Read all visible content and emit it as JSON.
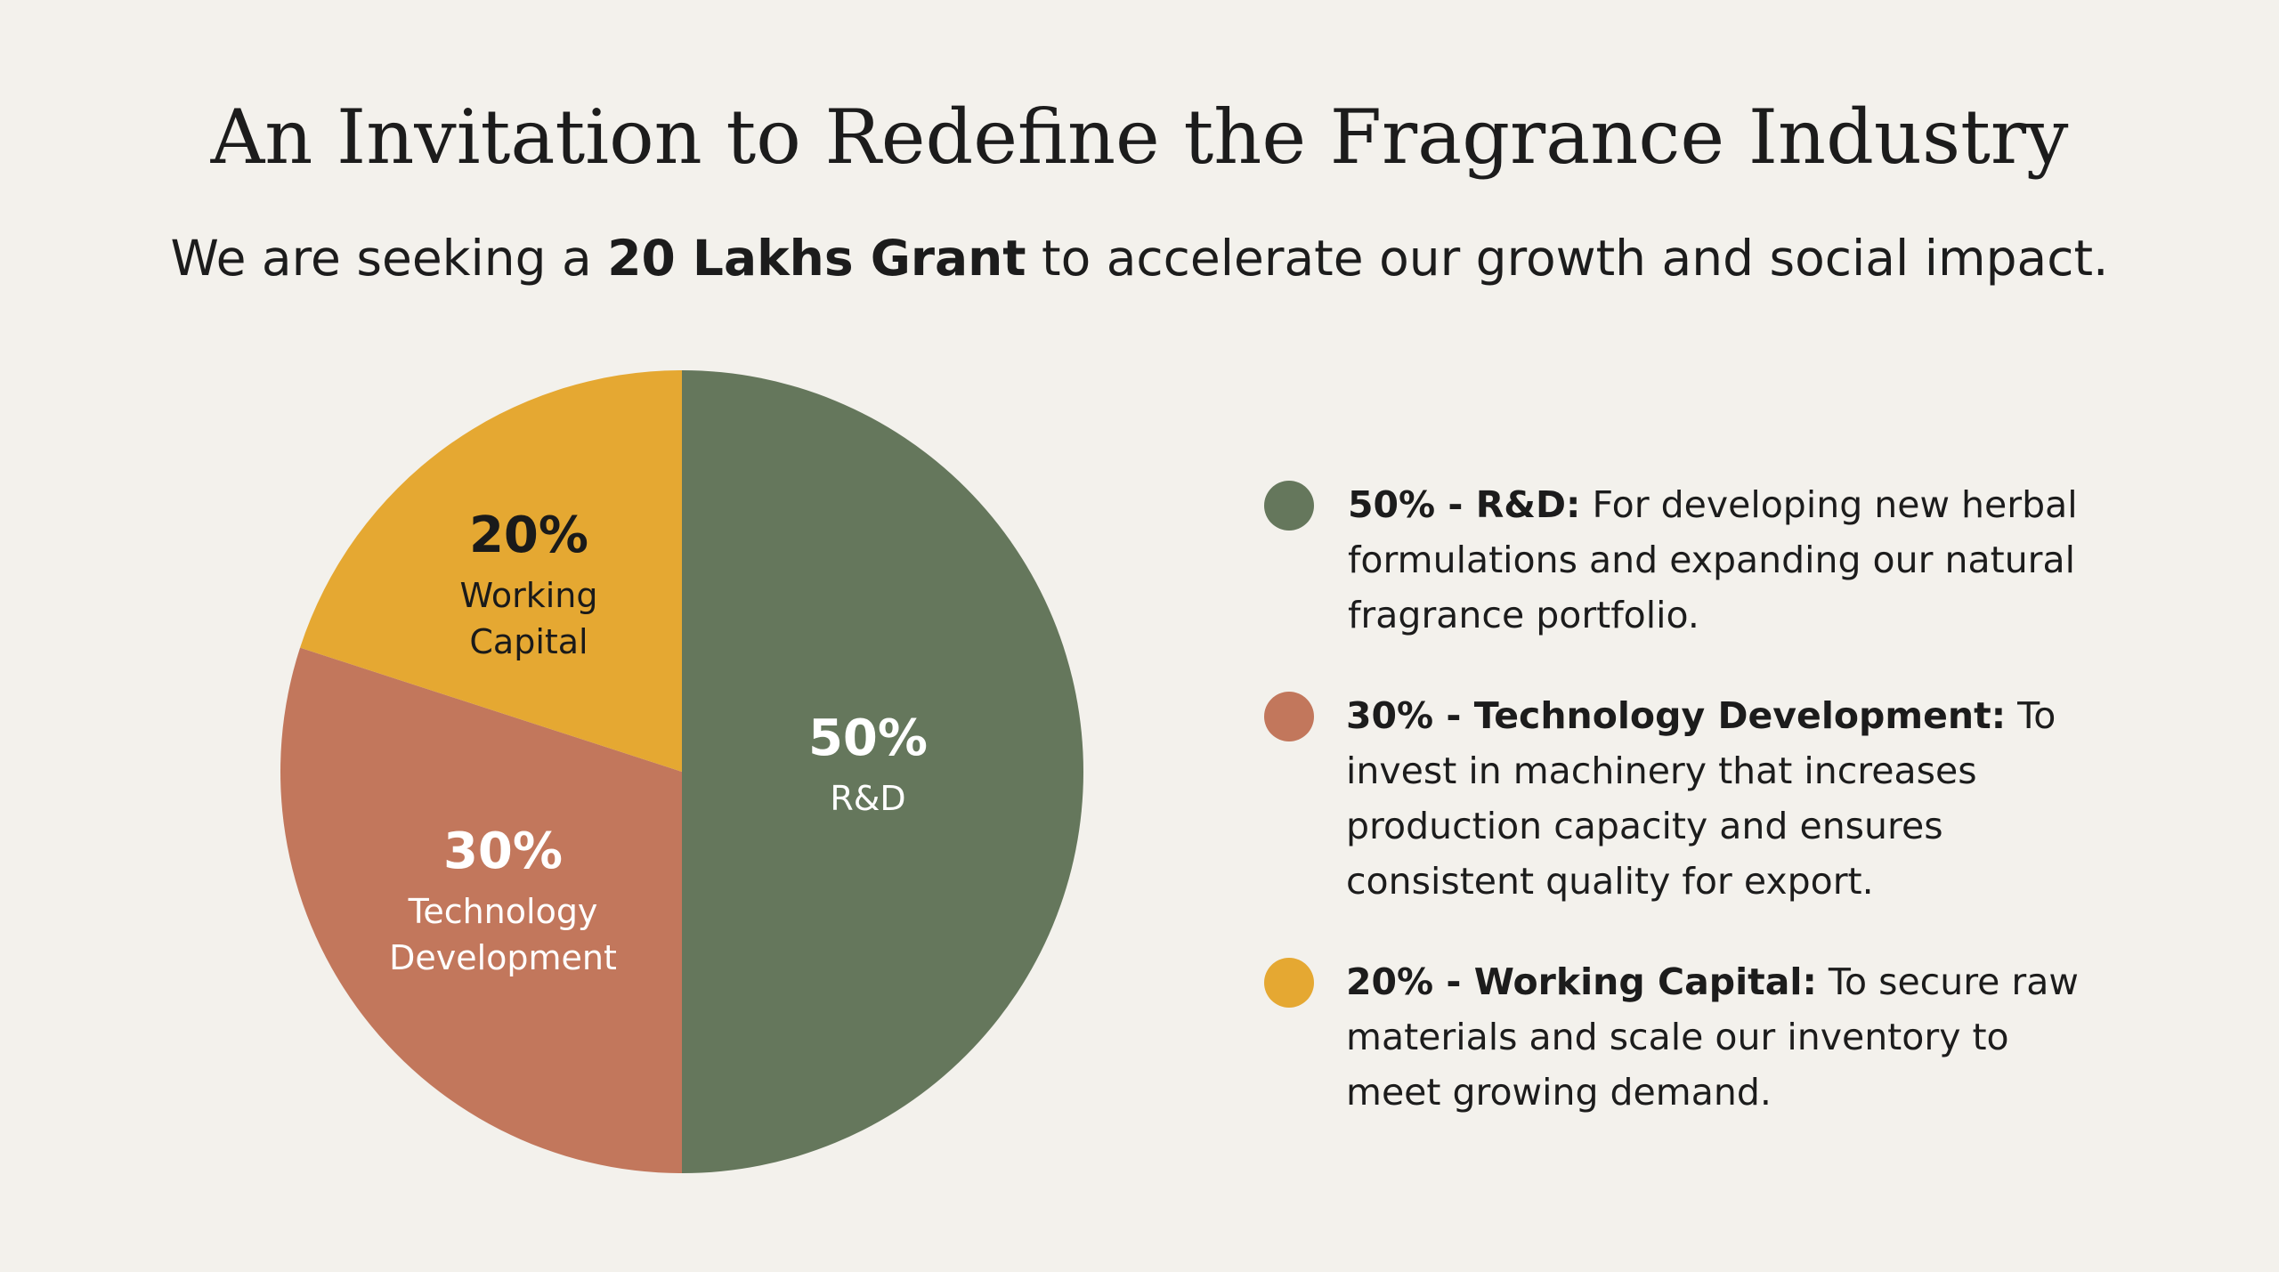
{
  "title": "An Invitation to Redefine the Fragrance Industry",
  "subtitle": {
    "before": "We are seeking a ",
    "bold": "20 Lakhs Grant",
    "after": " to accelerate our growth and social impact."
  },
  "chart_data": {
    "type": "pie",
    "start_angle": "12 o'clock, clockwise",
    "slices": [
      {
        "percent_label": "50%",
        "name": "R&D",
        "value": 50,
        "color": "#65775C",
        "label_color": "#FFFFFF"
      },
      {
        "percent_label": "30%",
        "name": "Technology Development",
        "name_lines": [
          "Technology",
          "Development"
        ],
        "value": 30,
        "color": "#C2775C",
        "label_color": "#FFFFFF"
      },
      {
        "percent_label": "20%",
        "name": "Working Capital",
        "name_lines": [
          "Working",
          "Capital"
        ],
        "value": 20,
        "color": "#E5A832",
        "label_color": "#1A1A1A"
      }
    ]
  },
  "legend": [
    {
      "bold": "50% - R&D:",
      "text": " For developing new herbal formulations and expanding our natural fragrance portfolio.",
      "color": "#65775C"
    },
    {
      "bold": "30% - Technology Development:",
      "text": " To invest in machinery that increases production capacity and ensures consistent quality for export.",
      "color": "#C2775C"
    },
    {
      "bold": "20% - Working Capital:",
      "text": " To secure raw materials and scale our inventory to meet growing demand.",
      "color": "#E5A832"
    }
  ]
}
